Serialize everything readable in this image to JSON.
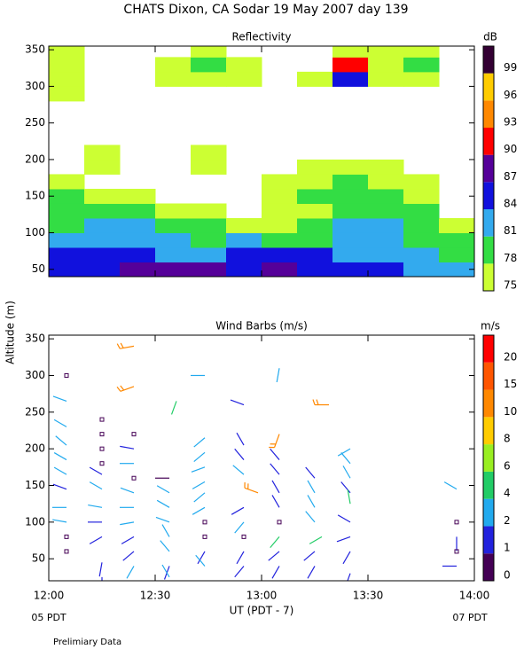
{
  "title": "CHATS Dixon, CA  Sodar  19 May 2007  day 139",
  "y_label": "Altitude (m)",
  "x_label": "UT  (PDT - 7)",
  "x_start_label": "05 PDT",
  "x_end_label": "07 PDT",
  "note": "Prelimiary Data",
  "chart_data": [
    {
      "type": "contour",
      "title": "Reflectivity",
      "colorbar_label": "dB",
      "x": [
        5,
        15,
        25,
        35,
        45,
        55,
        65,
        75,
        85,
        95,
        105,
        115
      ],
      "altitudes": [
        50,
        70,
        90,
        110,
        130,
        150,
        170,
        190,
        210,
        230,
        250,
        270,
        290,
        310,
        330,
        350
      ],
      "values": [
        [
          84,
          86,
          87,
          88,
          87,
          85,
          87,
          86,
          84,
          84,
          83,
          82
        ],
        [
          84,
          85,
          84,
          83,
          82,
          84,
          84,
          84,
          83,
          82,
          81,
          80
        ],
        [
          81,
          82,
          82,
          81,
          79,
          81,
          80,
          79,
          81,
          82,
          80,
          78
        ],
        [
          79,
          81,
          81,
          80,
          78,
          76,
          77,
          79,
          81,
          82,
          79,
          76
        ],
        [
          78,
          78,
          78,
          77,
          76,
          74,
          75,
          77,
          79,
          80,
          78,
          74
        ],
        [
          78,
          76,
          75,
          74,
          73,
          72,
          75,
          79,
          79,
          79,
          77,
          74
        ],
        [
          76,
          74,
          73,
          72,
          72,
          72,
          75,
          77,
          78,
          76,
          75,
          72
        ],
        [
          72,
          76,
          72,
          72,
          75,
          72,
          72,
          76,
          76,
          75,
          72,
          72
        ],
        [
          72,
          77,
          72,
          72,
          76,
          72,
          72,
          72,
          72,
          72,
          72,
          72
        ],
        [
          72,
          72,
          72,
          72,
          72,
          72,
          72,
          72,
          72,
          72,
          72,
          72
        ],
        [
          72,
          72,
          72,
          72,
          72,
          72,
          72,
          72,
          72,
          72,
          72,
          72
        ],
        [
          72,
          72,
          72,
          72,
          72,
          72,
          72,
          72,
          72,
          72,
          72,
          72
        ],
        [
          76,
          72,
          72,
          72,
          72,
          72,
          72,
          72,
          72,
          72,
          72,
          72
        ],
        [
          76,
          72,
          72,
          76,
          77,
          76,
          72,
          75,
          84,
          77,
          76,
          72
        ],
        [
          76,
          72,
          72,
          76,
          79,
          76,
          72,
          72,
          90,
          76,
          78,
          72
        ],
        [
          75,
          72,
          72,
          72,
          76,
          72,
          72,
          72,
          77,
          76,
          76,
          72
        ]
      ],
      "levels": [
        75,
        78,
        81,
        84,
        87,
        90,
        93,
        96,
        99
      ],
      "colors": [
        "#ccff33",
        "#33dd44",
        "#33aaee",
        "#1111dd",
        "#550099",
        "#ff0000",
        "#ff8800",
        "#ffcc00",
        "#330033"
      ],
      "xlim": [
        0,
        120
      ],
      "ylim": [
        40,
        355
      ],
      "yticks": [
        50,
        100,
        150,
        200,
        250,
        300,
        350
      ]
    },
    {
      "type": "barbs",
      "title": "Wind Barbs (m/s)",
      "colorbar_label": "m/s",
      "x": [
        5,
        5,
        5,
        5,
        5,
        5,
        5,
        5,
        5,
        5,
        5,
        15,
        15,
        15,
        15,
        15,
        15,
        15,
        15,
        15,
        15,
        15,
        24,
        24,
        24,
        24,
        24,
        24,
        24,
        24,
        24,
        24,
        24,
        24,
        36,
        34,
        34,
        34,
        34,
        34,
        34,
        34,
        34,
        44,
        44,
        44,
        44,
        44,
        44,
        44,
        44,
        44,
        44,
        44,
        55,
        55,
        55,
        55,
        59,
        55,
        55,
        55,
        55,
        55,
        65,
        65,
        65,
        65,
        65,
        65,
        65,
        65,
        65,
        65,
        79,
        75,
        75,
        75,
        75,
        77,
        75,
        75,
        85,
        85,
        85,
        85,
        85,
        85,
        85,
        85,
        85,
        115,
        115,
        115,
        115,
        115
      ],
      "altitude": [
        300,
        265,
        230,
        205,
        185,
        165,
        145,
        120,
        100,
        80,
        60,
        240,
        220,
        200,
        180,
        165,
        145,
        120,
        100,
        80,
        45,
        25,
        340,
        285,
        220,
        200,
        180,
        160,
        140,
        120,
        100,
        80,
        60,
        40,
        265,
        160,
        140,
        120,
        100,
        80,
        60,
        40,
        25,
        300,
        215,
        195,
        175,
        155,
        140,
        120,
        100,
        80,
        60,
        40,
        260,
        205,
        185,
        165,
        140,
        120,
        100,
        80,
        60,
        40,
        310,
        220,
        185,
        165,
        140,
        120,
        100,
        80,
        60,
        40,
        260,
        160,
        140,
        120,
        100,
        80,
        60,
        40,
        200,
        180,
        160,
        140,
        125,
        100,
        80,
        60,
        30,
        145,
        100,
        80,
        60,
        40
      ],
      "speed": [
        0,
        3,
        3,
        3,
        3,
        3,
        1.5,
        3,
        3,
        0,
        0,
        0,
        0,
        0,
        0,
        1.5,
        3,
        3,
        1.5,
        1.5,
        1.5,
        1.5,
        12,
        12,
        0,
        1.5,
        3,
        0,
        3,
        3,
        3,
        1.5,
        1.5,
        3,
        5,
        0.8,
        3,
        3,
        3,
        3,
        3,
        1.5,
        3,
        3,
        3,
        3,
        3,
        3,
        3,
        3,
        0,
        0,
        1.5,
        3,
        1.5,
        1.5,
        1.5,
        3,
        12,
        1.5,
        3,
        0,
        1.5,
        1.5,
        3,
        12,
        1.5,
        1.5,
        1.5,
        1.5,
        0,
        5,
        1.5,
        1.5,
        12,
        1.5,
        3,
        3,
        3,
        5,
        1.5,
        1.5,
        3,
        3,
        3,
        1.5,
        5,
        1.5,
        1.5,
        1.5,
        1.5,
        3,
        0,
        1.5,
        0,
        1.5
      ],
      "direction": [
        0,
        290,
        300,
        310,
        300,
        300,
        290,
        270,
        280,
        0,
        0,
        0,
        0,
        0,
        0,
        300,
        300,
        280,
        270,
        240,
        190,
        180,
        260,
        250,
        0,
        280,
        270,
        0,
        290,
        270,
        260,
        240,
        230,
        210,
        200,
        270,
        300,
        300,
        290,
        330,
        320,
        200,
        330,
        270,
        230,
        230,
        250,
        240,
        230,
        240,
        0,
        0,
        210,
        320,
        290,
        330,
        320,
        310,
        290,
        240,
        220,
        0,
        210,
        220,
        190,
        200,
        320,
        320,
        330,
        330,
        0,
        220,
        230,
        210,
        270,
        320,
        330,
        330,
        320,
        240,
        230,
        210,
        240,
        320,
        330,
        320,
        350,
        300,
        250,
        210,
        200,
        300,
        0,
        180,
        0,
        270
      ],
      "levels": [
        0,
        1,
        2,
        4,
        6,
        8,
        10,
        15,
        20
      ],
      "colors": [
        "#440055",
        "#2222dd",
        "#22aaee",
        "#22cc66",
        "#99ee22",
        "#ffcc00",
        "#ff8800",
        "#ff5500",
        "#ff0000"
      ],
      "xlim": [
        0,
        120
      ],
      "ylim": [
        20,
        355
      ],
      "xticks": [
        {
          "value": 0,
          "label": "12:00"
        },
        {
          "value": 30,
          "label": "12:30"
        },
        {
          "value": 60,
          "label": "13:00"
        },
        {
          "value": 90,
          "label": "13:30"
        },
        {
          "value": 120,
          "label": "14:00"
        }
      ],
      "yticks": [
        50,
        100,
        150,
        200,
        250,
        300,
        350
      ]
    }
  ]
}
